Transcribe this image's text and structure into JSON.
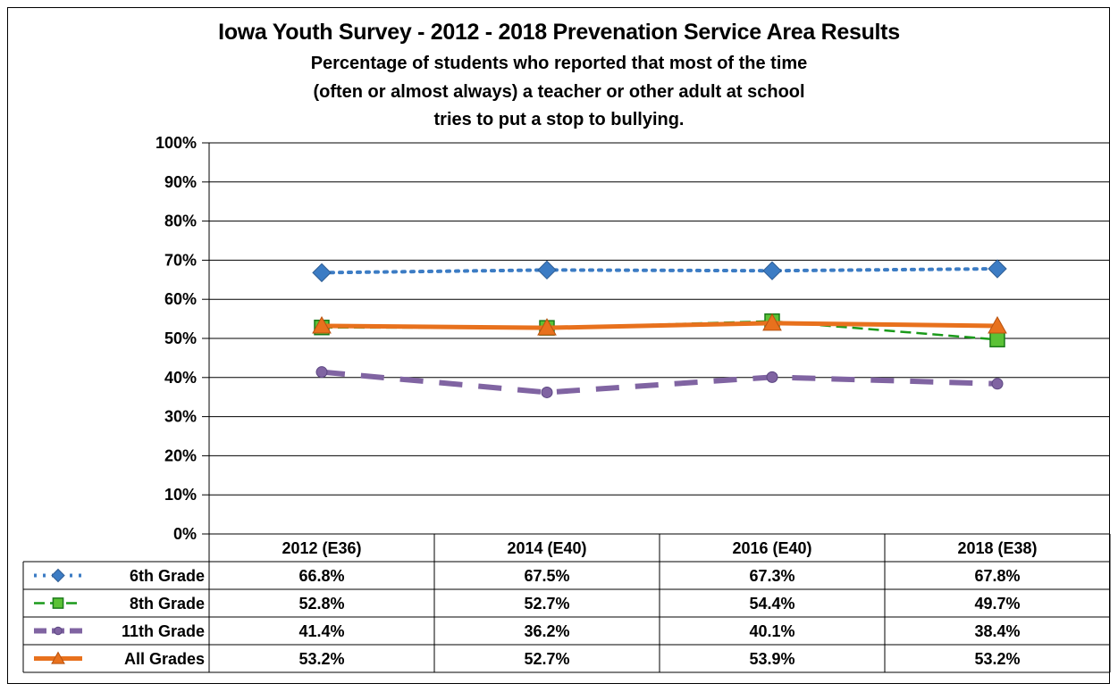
{
  "chart_data": {
    "type": "line",
    "title": "Iowa Youth Survey - 2012 - 2018 Prevenation Service Area Results",
    "subtitle": [
      "Percentage  of  students  who  reported  that  most  of  the  time",
      "(often  or  almost  always)  a  teacher  or  other  adult  at  school",
      "tries to put a stop to bullying."
    ],
    "categories": [
      "2012 (E36)",
      "2014 (E40)",
      "2016 (E40)",
      "2018 (E38)"
    ],
    "ylim": [
      0,
      100
    ],
    "yticks": [
      "0%",
      "10%",
      "20%",
      "30%",
      "40%",
      "50%",
      "60%",
      "70%",
      "80%",
      "90%",
      "100%"
    ],
    "grid": true,
    "legend": "data-table",
    "series": [
      {
        "name": "6th Grade",
        "values": [
          66.8,
          67.5,
          67.3,
          67.8
        ],
        "labels": [
          "66.8%",
          "67.5%",
          "67.3%",
          "67.8%"
        ],
        "color": "#3C7CC4",
        "marker": "diamond",
        "line": "dotted"
      },
      {
        "name": "8th Grade",
        "values": [
          52.8,
          52.7,
          54.4,
          49.7
        ],
        "labels": [
          "52.8%",
          "52.7%",
          "54.4%",
          "49.7%"
        ],
        "color": "#1A9A1A",
        "marker": "square",
        "line": "dashed"
      },
      {
        "name": "11th Grade",
        "values": [
          41.4,
          36.2,
          40.1,
          38.4
        ],
        "labels": [
          "41.4%",
          "36.2%",
          "40.1%",
          "38.4%"
        ],
        "color": "#8064A2",
        "marker": "circle",
        "line": "longdash"
      },
      {
        "name": "All Grades",
        "values": [
          53.2,
          52.7,
          53.9,
          53.2
        ],
        "labels": [
          "53.2%",
          "52.7%",
          "53.9%",
          "53.2%"
        ],
        "color": "#E8711D",
        "marker": "triangle",
        "line": "solid"
      }
    ]
  }
}
